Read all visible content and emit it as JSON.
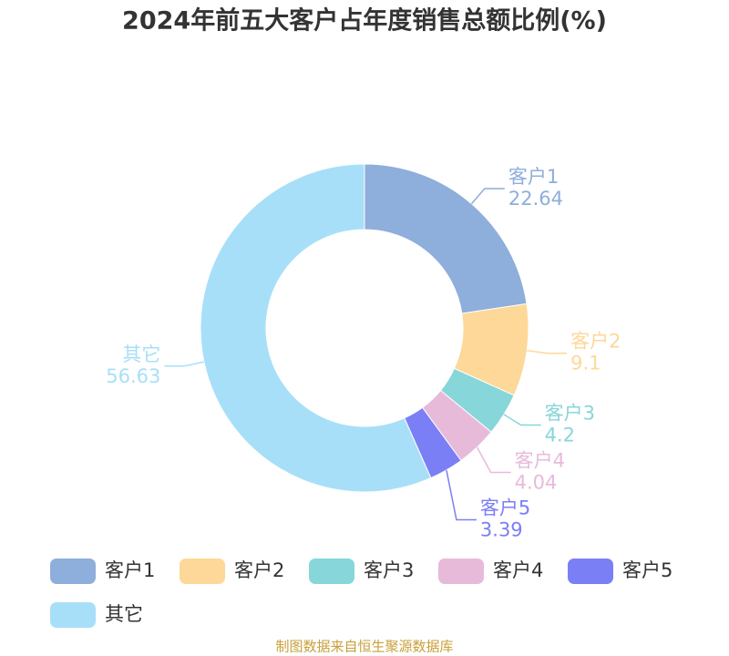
{
  "chart_data": {
    "type": "donut",
    "title": "2024年前五大客户占年度销售总额比例(%)",
    "categories": [
      "客户1",
      "客户2",
      "客户3",
      "客户4",
      "客户5",
      "其它"
    ],
    "values": [
      22.64,
      9.1,
      4.2,
      4.04,
      3.39,
      56.63
    ],
    "colors": [
      "#8eaedb",
      "#fdd899",
      "#87d6d9",
      "#e8bada",
      "#7b7ff5",
      "#a8dff8"
    ],
    "source": "制图数据来自恒生聚源数据库"
  }
}
